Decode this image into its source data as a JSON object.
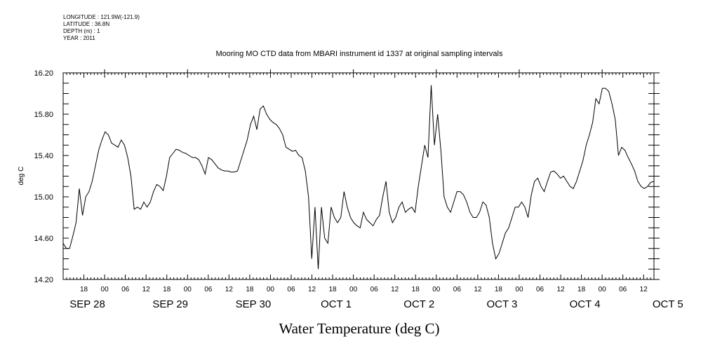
{
  "header": {
    "longitude": "LONGITUDE : 121.9W(-121.9)",
    "latitude": "LATITUDE : 36.8N",
    "depth": "DEPTH (m) : 1",
    "year": "YEAR : 2011"
  },
  "chart_data": {
    "type": "line",
    "title": "Mooring MO CTD data from MBARI instrument id 1337 at original sampling intervals",
    "xlabel": "Water Temperature (deg C)",
    "ylabel": "deg C",
    "ylim": [
      14.2,
      16.2
    ],
    "yticks": [
      "14.20",
      "14.60",
      "15.00",
      "15.40",
      "15.80",
      "16.20"
    ],
    "xlim": [
      "2011-09-28 12:00",
      "2011-10-05 15:00"
    ],
    "hour_ticks": [
      "18",
      "00",
      "06",
      "12",
      "18",
      "00",
      "06",
      "12",
      "18",
      "00",
      "06",
      "12",
      "18",
      "00",
      "06",
      "12",
      "18",
      "00",
      "06",
      "12",
      "18",
      "00",
      "06",
      "12",
      "18",
      "00",
      "06",
      "12"
    ],
    "day_labels": [
      {
        "label": "SEP 28",
        "hour": 6
      },
      {
        "label": "SEP 29",
        "hour": 30
      },
      {
        "label": "SEP 30",
        "hour": 54
      },
      {
        "label": "OCT  1",
        "hour": 78
      },
      {
        "label": "OCT  2",
        "hour": 102
      },
      {
        "label": "OCT  3",
        "hour": 126
      },
      {
        "label": "OCT  4",
        "hour": 150
      },
      {
        "label": "OCT  5",
        "hour": 174
      }
    ],
    "series": [
      {
        "x_hours": [
          0,
          1,
          2,
          3,
          4,
          5,
          6,
          7,
          8,
          9,
          10,
          11,
          12,
          13,
          14,
          15,
          16,
          17,
          18,
          19,
          20,
          21,
          22,
          23,
          24,
          25,
          26,
          27,
          28,
          29,
          30,
          31,
          32,
          33,
          34,
          35,
          36,
          37,
          38,
          39,
          40,
          41,
          42,
          43,
          44,
          45,
          46,
          47,
          48,
          49,
          50,
          51,
          52,
          53,
          54,
          55,
          56,
          57,
          58,
          59,
          60,
          61,
          62,
          63,
          64,
          65,
          66,
          67,
          68,
          69,
          70,
          71,
          72,
          73,
          74,
          75,
          76,
          77,
          78,
          79,
          80,
          81,
          82,
          83,
          84,
          85,
          86,
          87,
          88,
          89,
          90,
          91,
          92,
          93,
          94,
          95,
          96,
          97,
          98,
          99,
          100,
          101,
          102,
          103,
          104,
          105,
          106,
          107,
          108,
          109,
          110,
          111,
          112,
          113,
          114,
          115,
          116,
          117,
          118,
          119,
          120,
          121,
          122,
          123,
          124,
          125,
          126,
          127,
          128,
          129,
          130,
          131,
          132,
          133,
          134,
          135,
          136,
          137,
          138,
          139,
          140,
          141,
          142,
          143,
          144,
          145,
          146,
          147,
          148,
          149,
          150,
          151,
          152,
          153,
          154,
          155,
          156,
          157,
          158,
          159,
          160,
          161,
          162,
          163,
          164,
          165,
          166,
          167,
          168,
          169,
          170,
          171,
          172,
          173,
          174,
          175,
          176,
          177,
          178,
          179,
          180,
          181,
          182,
          183
        ],
        "values": [
          14.55,
          14.5,
          14.5,
          14.62,
          14.75,
          15.08,
          14.82,
          15.0,
          15.05,
          15.15,
          15.3,
          15.45,
          15.55,
          15.63,
          15.6,
          15.52,
          15.5,
          15.48,
          15.55,
          15.5,
          15.38,
          15.2,
          14.88,
          14.9,
          14.88,
          14.95,
          14.9,
          14.95,
          15.05,
          15.12,
          15.1,
          15.06,
          15.2,
          15.38,
          15.42,
          15.46,
          15.45,
          15.43,
          15.42,
          15.4,
          15.38,
          15.38,
          15.36,
          15.3,
          15.22,
          15.38,
          15.36,
          15.32,
          15.28,
          15.26,
          15.25,
          15.25,
          15.24,
          15.24,
          15.25,
          15.35,
          15.45,
          15.55,
          15.7,
          15.78,
          15.65,
          15.85,
          15.88,
          15.8,
          15.75,
          15.72,
          15.7,
          15.66,
          15.6,
          15.48,
          15.46,
          15.44,
          15.45,
          15.4,
          15.38,
          15.25,
          15.0,
          14.4,
          14.9,
          14.3,
          14.9,
          14.6,
          14.55,
          14.9,
          14.8,
          14.75,
          14.8,
          15.05,
          14.9,
          14.8,
          14.75,
          14.72,
          14.7,
          14.85,
          14.78,
          14.75,
          14.72,
          14.78,
          14.82,
          15.0,
          15.15,
          14.85,
          14.75,
          14.8,
          14.9,
          14.95,
          14.85,
          14.88,
          14.9,
          14.85,
          15.1,
          15.3,
          15.5,
          15.38,
          16.08,
          15.5,
          15.8,
          15.45,
          15.0,
          14.9,
          14.85,
          14.95,
          15.05,
          15.05,
          15.02,
          14.95,
          14.85,
          14.8,
          14.8,
          14.85,
          14.95,
          14.92,
          14.8,
          14.55,
          14.4,
          14.45,
          14.55,
          14.65,
          14.7,
          14.8,
          14.9,
          14.9,
          14.95,
          14.9,
          14.8,
          15.02,
          15.15,
          15.18,
          15.1,
          15.05,
          15.15,
          15.24,
          15.25,
          15.22,
          15.18,
          15.2,
          15.15,
          15.1,
          15.08,
          15.15,
          15.25,
          15.35,
          15.5,
          15.6,
          15.72,
          15.95,
          15.9,
          16.05,
          16.05,
          16.02,
          15.9,
          15.75,
          15.4,
          15.48,
          15.45,
          15.38,
          15.32,
          15.25,
          15.15,
          15.1,
          15.08,
          15.1,
          15.14,
          15.15
        ]
      }
    ]
  }
}
